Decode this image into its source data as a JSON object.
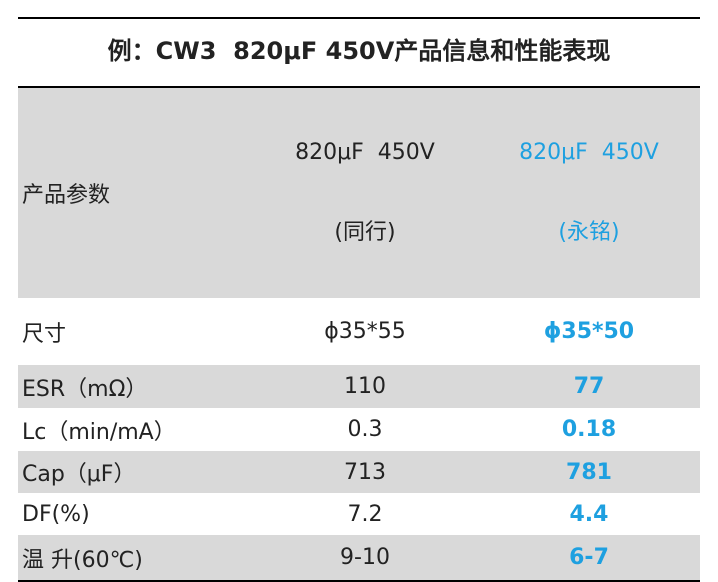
{
  "title": "例：CW3  820μF 450V产品信息和性能表现",
  "table": {
    "header": {
      "label": "产品参数",
      "col1": [
        "820μF  450V",
        "(同行)"
      ],
      "col2": [
        "820μF  450V",
        "(永铭)"
      ]
    },
    "rows": [
      [
        "尺寸",
        "ϕ35*55",
        "ϕ35*50"
      ],
      [
        "ESR（mΩ）",
        110,
        77
      ],
      [
        "Lc（min/mA）",
        0.3,
        0.18
      ],
      [
        "Cap（μF）",
        713,
        781
      ],
      [
        "DF(%)",
        7.2,
        4.4
      ],
      [
        "温 升(60℃)",
        "9-10",
        "6-7"
      ]
    ]
  }
}
